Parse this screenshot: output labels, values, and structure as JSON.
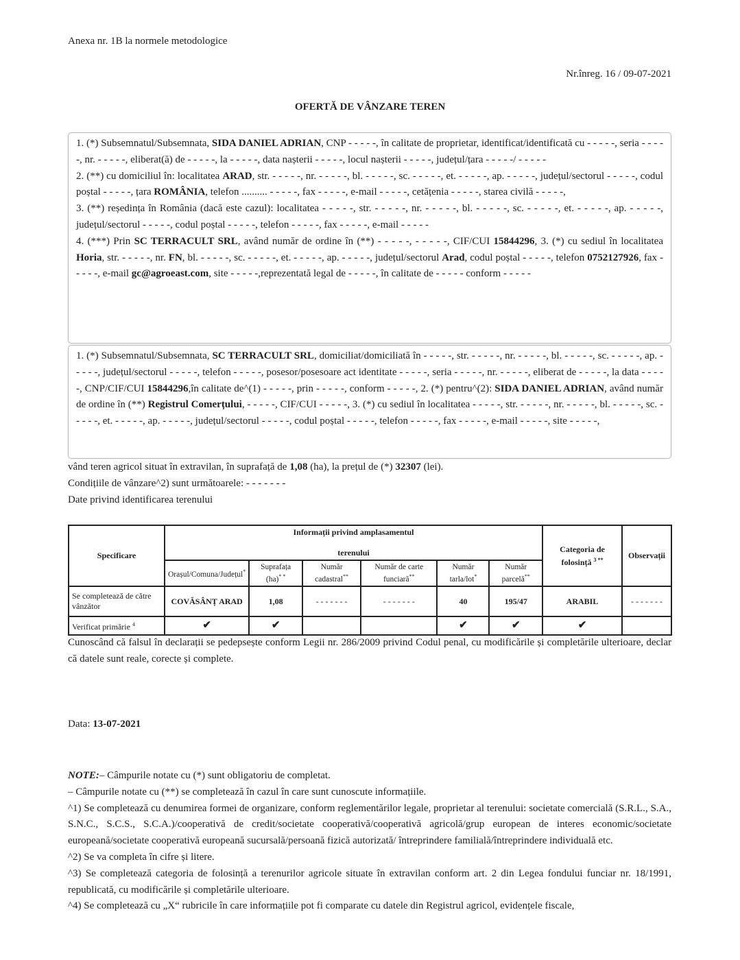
{
  "header": {
    "annex": "Anexa nr. 1B la normele metodologice",
    "registration": "Nr.înreg. 16 / 09-07-2021",
    "title": "OFERTĂ DE VÂNZARE TEREN"
  },
  "box1": [
    [
      {
        "t": "1. (*) Subsemnatul/Subsemnata, "
      },
      {
        "t": "SIDA DANIEL ADRIAN",
        "b": true
      },
      {
        "t": ", CNP - - - - -, în calitate de proprietar, identificat/identificată cu - - - - -, seria - - - - -, nr. - - - - -, eliberat(ă) de - - - - -, la - - - - -, data nașterii - - - - -, locul nașterii - - - - -, județul/țara - - - - -/ - - - - -"
      }
    ],
    [
      {
        "t": "2. (**) cu domiciliul în: localitatea "
      },
      {
        "t": "ARAD",
        "b": true
      },
      {
        "t": ", str. - - - - -, nr. - - - - -, bl. - - - - -, sc. - - - - -, et. - - - - -, ap. - - - - -, județul/sectorul - - - - -, codul poștal - - - - -, țara "
      },
      {
        "t": "ROMÂNIA",
        "b": true
      },
      {
        "t": ", telefon .......... - - - - -, fax - - - - -, e-mail - - - - -, cetățenia - - - - -, starea civilă - - - - -,"
      }
    ],
    [
      {
        "t": "3. (**) reședința în România (dacă este cazul): localitatea - - - - -, str. - - - - -, nr. - - - - -, bl. - - - - -, sc. - - - - -, et. - - - - -, ap. - - - - -, județul/sectorul - - - - -, codul poștal - - - - -, telefon - - - - -, fax - - - - -, e-mail - - - - -"
      }
    ],
    [
      {
        "t": "4. (***) Prin "
      },
      {
        "t": "SC TERRACULT SRL",
        "b": true
      },
      {
        "t": ", având număr de ordine în (**) - - - - -, - - - - -, CIF/CUI "
      },
      {
        "t": "15844296",
        "b": true
      },
      {
        "t": ", 3. (*) cu sediul în localitatea "
      },
      {
        "t": "Horia",
        "b": true
      },
      {
        "t": ", str. - - - - -, nr. "
      },
      {
        "t": "FN",
        "b": true
      },
      {
        "t": ", bl. - - - - -, sc. - - - - -, et. - - - - -, ap. - - - - -, județul/sectorul "
      },
      {
        "t": "Arad",
        "b": true
      },
      {
        "t": ", codul poștal - - - - -, telefon "
      },
      {
        "t": "0752127926",
        "b": true
      },
      {
        "t": ", fax - - - - -, e-mail "
      },
      {
        "t": "gc@agroeast.com",
        "b": true
      },
      {
        "t": ", site - - - - -,reprezentată legal de - - - - -, în calitate de - - - - - conform - - - - -"
      }
    ]
  ],
  "box2": [
    [
      {
        "t": "1. (*) Subsemnatul/Subsemnata, "
      },
      {
        "t": "SC TERRACULT SRL",
        "b": true
      },
      {
        "t": ", domiciliat/domiciliată în - - - - -, str. - - - - -, nr. - - - - -, bl. - - - - -, sc. - - - - -, ap. - - - - -, județul/sectorul - - - - -, telefon - - - - -, posesor/posesoare act identitate - - - - -, seria - - - - -, nr. - - - - -, eliberat de - - - - -, la data - - - - -, CNP/CIF/CUI "
      },
      {
        "t": "15844296",
        "b": true
      },
      {
        "t": ",în calitate de^(1) - - - - -, prin - - - - -, conform - - - - -, 2. (*) pentru^(2): "
      },
      {
        "t": "SIDA DANIEL ADRIAN",
        "b": true
      },
      {
        "t": ", având număr de ordine în (**) "
      },
      {
        "t": "Registrul Comerțului",
        "b": true
      },
      {
        "t": ", - - - - -, CIF/CUI - - - - -, 3. (*) cu sediul în localitatea - - - - -, str. - - - - -, nr. - - - - -, bl. - - - - -, sc. - - - - -, et. - - - - -, ap. - - - - -, județul/sectorul - - - - -, codul poștal - - - - -, telefon - - - - -, fax - - - - -, e-mail - - - - -, site - - - - -,"
      }
    ]
  ],
  "after": [
    [
      {
        "t": "vând teren agricol situat în extravilan, în suprafață de "
      },
      {
        "t": "1,08",
        "b": true
      },
      {
        "t": " (ha), la prețul de (*) "
      },
      {
        "t": "32307",
        "b": true
      },
      {
        "t": " (lei)."
      }
    ],
    [
      {
        "t": "Condițiile de vânzare^2) sunt următoarele: - - - - - - -"
      }
    ],
    [
      {
        "t": "Date privind identificarea terenului"
      }
    ]
  ],
  "table": {
    "spec": "Specificare",
    "info": "Informații privind amplasamentul",
    "info2": "terenului",
    "cat": "Categoria de folosință",
    "cat_sup": "3 **",
    "obs": "Observații",
    "sub": [
      {
        "l": "Orașul/Comuna/Județul",
        "s": "*"
      },
      {
        "l": "Suprafața (ha)",
        "s": "* *"
      },
      {
        "l": "Număr cadastral",
        "s": "**"
      },
      {
        "l": "Număr de carte funciară",
        "s": "**"
      },
      {
        "l": "Număr tarla/lot",
        "s": "*"
      },
      {
        "l": "Număr parcelă",
        "s": "**"
      }
    ],
    "row1": {
      "label": "Se completează de către vânzător",
      "cells": [
        "COVĂSÂNȚ ARAD",
        "1,08",
        "- - - - - - -",
        "- - - - - - -",
        "40",
        "195/47",
        "ARABIL",
        "- - - - - - -"
      ]
    },
    "row2": {
      "label": "Verificat primărie",
      "label_sup": "4",
      "checks": [
        true,
        true,
        false,
        false,
        true,
        true,
        true,
        false
      ]
    }
  },
  "declaration": [
    [
      {
        "t": "Cunoscând că falsul în declarații se pedepsește conform Legii nr. 286/2009 privind Codul penal, cu modificările și completările ulterioare, declar că datele sunt reale, corecte și complete."
      }
    ]
  ],
  "date": [
    [
      {
        "t": "Data: "
      },
      {
        "t": "13-07-2021",
        "b": true
      }
    ]
  ],
  "notes": [
    [
      {
        "t": "NOTE:",
        "b": true,
        "i": true
      },
      {
        "t": "– Câmpurile notate cu (*) sunt obligatoriu de completat."
      }
    ],
    [
      {
        "t": "– Câmpurile notate cu (**) se completează în cazul în care sunt cunoscute informațiile."
      }
    ],
    [
      {
        "t": "^1) Se completează cu denumirea formei de organizare, conform reglementărilor legale, proprietar al terenului: societate comercială (S.R.L., S.A., S.N.C., S.C.S., S.C.A.)/cooperativă de credit/societate cooperativă/cooperativă agricolă/grup european de interes economic/societate europeană/societate cooperativă europeană sucursală/persoană fizică autorizată/ întreprindere familială/întreprindere individuală etc."
      }
    ],
    [
      {
        "t": "^2) Se va completa în cifre și litere."
      }
    ],
    [
      {
        "t": "^3) Se completează categoria de folosință a terenurilor agricole situate în extravilan conform art. 2 din Legea fondului funciar nr. 18/1991, republicată, cu modificările și completările ulterioare."
      }
    ],
    [
      {
        "t": "^4) Se completează cu „X“ rubricile în care informațiile pot fi comparate cu datele din Registrul agricol, evidențele fiscale,"
      }
    ]
  ],
  "icons": {
    "check": "check-mark-icon"
  }
}
